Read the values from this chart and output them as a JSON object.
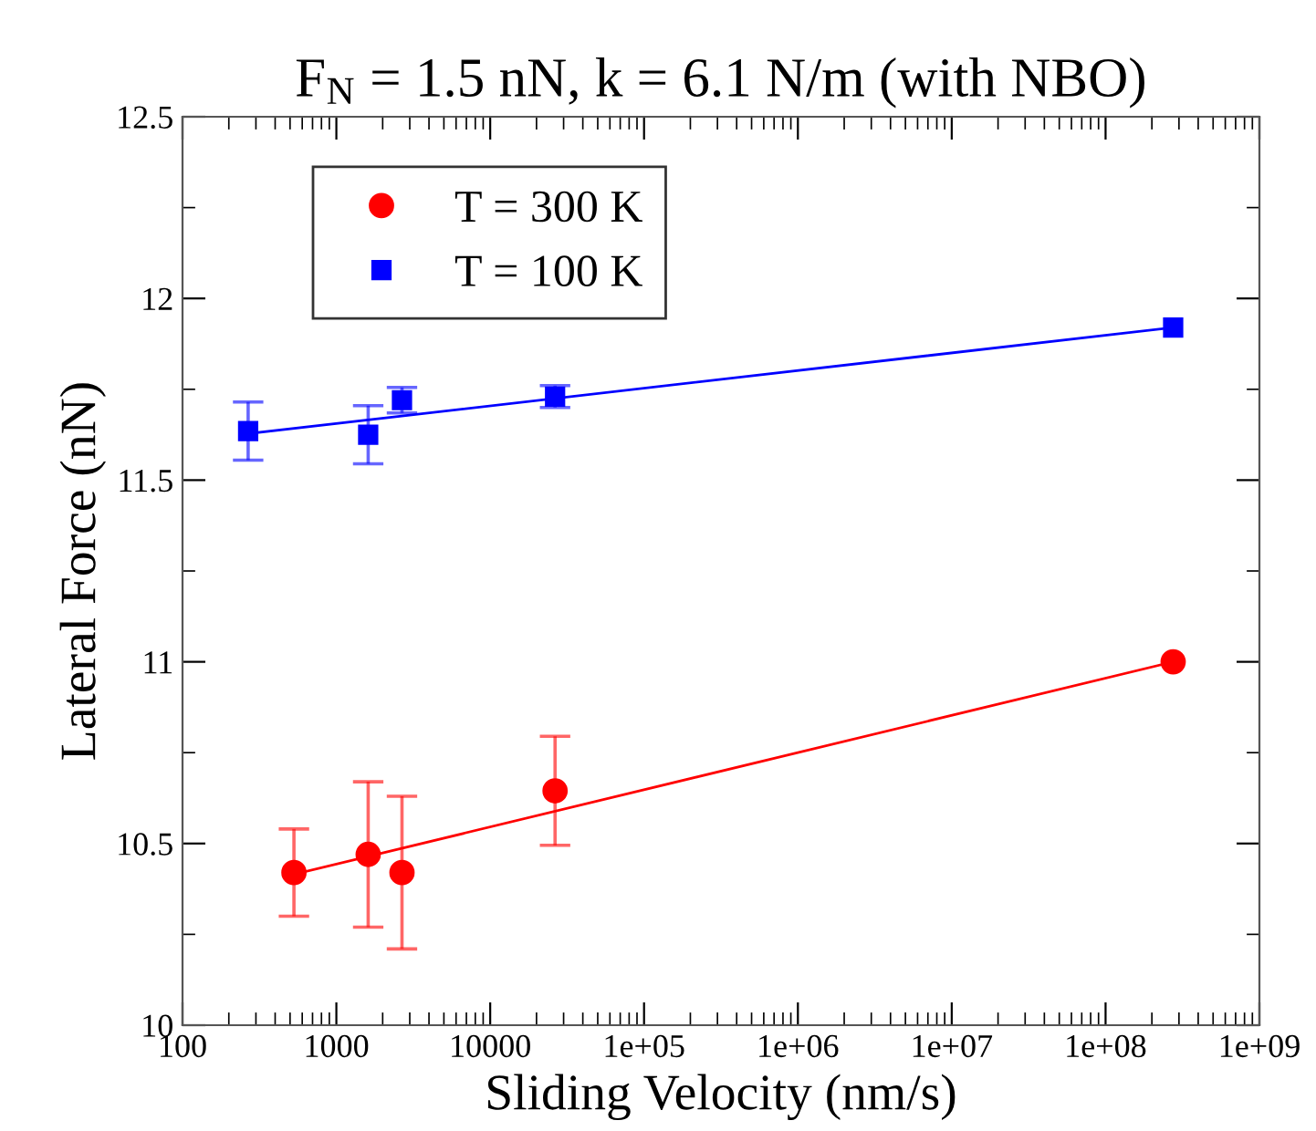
{
  "chart_data": {
    "type": "scatter",
    "title": "F$_{N}$ = 1.5 nN, k = 6.1 N/m (with NBO)",
    "xlabel": "Sliding Velocity (nm/s)",
    "ylabel": "Lateral Force (nN)",
    "log": "x",
    "xlim": [
      100,
      1000000000
    ],
    "xticks": [
      100,
      1000,
      10000,
      {
        "value": 100000,
        "label": "1e+05"
      },
      {
        "value": 1000000,
        "label": "1e+06"
      },
      {
        "value": 10000000,
        "label": "1e+07"
      },
      {
        "value": 100000000,
        "label": "1e+08"
      },
      {
        "value": 1000000000,
        "label": "1e+09"
      }
    ],
    "ylim": [
      10,
      12.5
    ],
    "yticks": [
      10,
      10.5,
      11,
      11.5,
      12,
      12.5
    ],
    "grid": false,
    "legend": "top left",
    "series": [
      {
        "name": "T = 300 K",
        "color": "#ff0000",
        "marker": "circle",
        "x": [
          530,
          1610,
          2670,
          26400,
          275000000
        ],
        "values": [
          10.42,
          10.47,
          10.42,
          10.645,
          11.0
        ],
        "errors": [
          0.12,
          0.2,
          0.21,
          0.15,
          null
        ]
      },
      {
        "name": "T = 100 K",
        "color": "#0000ff",
        "marker": "square",
        "x": [
          267,
          1610,
          2670,
          26400,
          275000000
        ],
        "values": [
          11.635,
          11.625,
          11.72,
          11.73,
          11.92
        ],
        "errors": [
          0.08,
          0.08,
          0.035,
          0.03,
          null
        ]
      },
      {
        "type": "line",
        "color": "#ff0000",
        "x": [
          530,
          275000000
        ],
        "values": [
          10.415,
          11.0
        ]
      },
      {
        "type": "line",
        "color": "#0000ff",
        "x": [
          267,
          275000000
        ],
        "values": [
          11.628,
          11.92
        ]
      }
    ]
  }
}
